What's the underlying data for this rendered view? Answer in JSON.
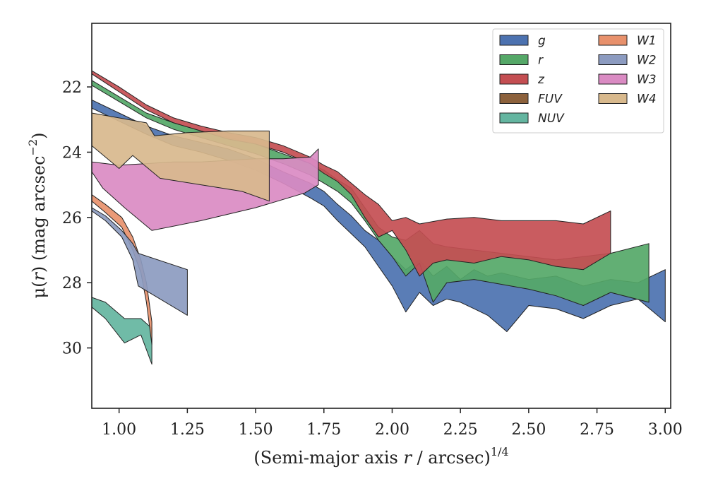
{
  "chart_data": {
    "type": "area",
    "title": "",
    "xlabel": {
      "prefix": "(Semi-major axis ",
      "var": "r",
      "mid": " / arcsec)",
      "sup": "1/4"
    },
    "ylabel": {
      "prefix": "μ(",
      "var": "r",
      "mid": ") (mag arcsec",
      "sup": "−2",
      "suffix": ")"
    },
    "xlim": [
      0.9,
      3.02
    ],
    "ylim": [
      31.85,
      20.05
    ],
    "y_inverted": true,
    "xticks": [
      1.0,
      1.25,
      1.5,
      1.75,
      2.0,
      2.25,
      2.5,
      2.75,
      3.0
    ],
    "xtick_labels": [
      "1.00",
      "1.25",
      "1.50",
      "1.75",
      "2.00",
      "2.25",
      "2.50",
      "2.75",
      "3.00"
    ],
    "yticks": [
      22,
      24,
      26,
      28,
      30
    ],
    "ytick_labels": [
      "22",
      "24",
      "26",
      "28",
      "30"
    ],
    "grid": false,
    "legend": {
      "placement": "top-right",
      "columns": 2
    },
    "series": [
      {
        "name": "g",
        "color": "#4c72b0",
        "upper": [
          [
            0.9,
            22.4
          ],
          [
            1.0,
            22.8
          ],
          [
            1.1,
            23.2
          ],
          [
            1.2,
            23.5
          ],
          [
            1.3,
            23.7
          ],
          [
            1.4,
            23.9
          ],
          [
            1.5,
            24.2
          ],
          [
            1.6,
            24.6
          ],
          [
            1.7,
            24.95
          ],
          [
            1.75,
            25.2
          ],
          [
            1.8,
            25.6
          ],
          [
            1.85,
            25.95
          ],
          [
            1.9,
            26.4
          ],
          [
            1.95,
            26.7
          ],
          [
            2.0,
            27.2
          ],
          [
            2.05,
            27.6
          ],
          [
            2.1,
            27.3
          ],
          [
            2.15,
            27.8
          ],
          [
            2.2,
            27.5
          ],
          [
            2.25,
            27.9
          ],
          [
            2.3,
            27.6
          ],
          [
            2.35,
            27.8
          ],
          [
            2.4,
            27.7
          ],
          [
            2.5,
            27.9
          ],
          [
            2.6,
            27.8
          ],
          [
            2.7,
            28.1
          ],
          [
            2.8,
            27.9
          ],
          [
            2.9,
            28.0
          ],
          [
            3.0,
            27.6
          ]
        ],
        "lower": [
          [
            0.9,
            22.65
          ],
          [
            1.0,
            23.05
          ],
          [
            1.1,
            23.45
          ],
          [
            1.2,
            23.8
          ],
          [
            1.3,
            24.0
          ],
          [
            1.4,
            24.25
          ],
          [
            1.5,
            24.55
          ],
          [
            1.6,
            24.95
          ],
          [
            1.7,
            25.4
          ],
          [
            1.75,
            25.65
          ],
          [
            1.8,
            26.1
          ],
          [
            1.85,
            26.5
          ],
          [
            1.9,
            26.9
          ],
          [
            1.95,
            27.5
          ],
          [
            2.0,
            28.1
          ],
          [
            2.05,
            28.9
          ],
          [
            2.1,
            28.3
          ],
          [
            2.15,
            28.7
          ],
          [
            2.2,
            28.5
          ],
          [
            2.25,
            28.6
          ],
          [
            2.3,
            28.8
          ],
          [
            2.35,
            29.0
          ],
          [
            2.42,
            29.5
          ],
          [
            2.5,
            28.7
          ],
          [
            2.6,
            28.8
          ],
          [
            2.7,
            29.1
          ],
          [
            2.8,
            28.7
          ],
          [
            2.9,
            28.5
          ],
          [
            3.0,
            29.2
          ]
        ]
      },
      {
        "name": "r",
        "color": "#55a868",
        "upper": [
          [
            0.9,
            21.8
          ],
          [
            1.0,
            22.3
          ],
          [
            1.1,
            22.8
          ],
          [
            1.2,
            23.1
          ],
          [
            1.3,
            23.35
          ],
          [
            1.4,
            23.55
          ],
          [
            1.5,
            23.75
          ],
          [
            1.6,
            24.05
          ],
          [
            1.7,
            24.35
          ],
          [
            1.75,
            24.55
          ],
          [
            1.8,
            24.85
          ],
          [
            1.85,
            25.1
          ],
          [
            1.9,
            25.7
          ],
          [
            1.95,
            26.3
          ],
          [
            2.0,
            26.6
          ],
          [
            2.05,
            26.7
          ],
          [
            2.1,
            26.4
          ],
          [
            2.15,
            26.8
          ],
          [
            2.2,
            26.9
          ],
          [
            2.3,
            27.0
          ],
          [
            2.5,
            27.2
          ],
          [
            2.6,
            27.3
          ],
          [
            2.7,
            27.2
          ],
          [
            2.8,
            27.1
          ],
          [
            2.94,
            26.8
          ]
        ],
        "lower": [
          [
            0.9,
            21.95
          ],
          [
            1.0,
            22.45
          ],
          [
            1.1,
            22.95
          ],
          [
            1.2,
            23.3
          ],
          [
            1.3,
            23.55
          ],
          [
            1.4,
            23.8
          ],
          [
            1.5,
            24.05
          ],
          [
            1.6,
            24.35
          ],
          [
            1.7,
            24.7
          ],
          [
            1.75,
            24.95
          ],
          [
            1.8,
            25.2
          ],
          [
            1.85,
            25.55
          ],
          [
            1.9,
            26.1
          ],
          [
            1.95,
            26.7
          ],
          [
            2.0,
            27.2
          ],
          [
            2.05,
            27.8
          ],
          [
            2.1,
            27.4
          ],
          [
            2.15,
            28.6
          ],
          [
            2.2,
            28.0
          ],
          [
            2.3,
            27.9
          ],
          [
            2.5,
            28.2
          ],
          [
            2.6,
            28.4
          ],
          [
            2.7,
            28.7
          ],
          [
            2.8,
            28.3
          ],
          [
            2.94,
            28.6
          ]
        ]
      },
      {
        "name": "z",
        "color": "#c44e52",
        "upper": [
          [
            0.9,
            21.5
          ],
          [
            1.0,
            22.0
          ],
          [
            1.1,
            22.55
          ],
          [
            1.2,
            22.95
          ],
          [
            1.3,
            23.2
          ],
          [
            1.4,
            23.4
          ],
          [
            1.5,
            23.55
          ],
          [
            1.6,
            23.8
          ],
          [
            1.7,
            24.15
          ],
          [
            1.75,
            24.4
          ],
          [
            1.8,
            24.6
          ],
          [
            1.85,
            24.95
          ],
          [
            1.9,
            25.3
          ],
          [
            1.95,
            25.6
          ],
          [
            2.0,
            26.1
          ],
          [
            2.05,
            26.0
          ],
          [
            2.1,
            26.2
          ],
          [
            2.2,
            26.05
          ],
          [
            2.3,
            26.0
          ],
          [
            2.4,
            26.1
          ],
          [
            2.5,
            26.1
          ],
          [
            2.6,
            26.1
          ],
          [
            2.7,
            26.2
          ],
          [
            2.8,
            25.8
          ]
        ],
        "lower": [
          [
            0.9,
            21.6
          ],
          [
            1.0,
            22.15
          ],
          [
            1.1,
            22.7
          ],
          [
            1.2,
            23.1
          ],
          [
            1.3,
            23.35
          ],
          [
            1.4,
            23.6
          ],
          [
            1.5,
            23.75
          ],
          [
            1.6,
            24.0
          ],
          [
            1.7,
            24.35
          ],
          [
            1.75,
            24.65
          ],
          [
            1.8,
            24.9
          ],
          [
            1.85,
            25.3
          ],
          [
            1.9,
            26.0
          ],
          [
            1.95,
            26.6
          ],
          [
            2.0,
            26.4
          ],
          [
            2.05,
            27.0
          ],
          [
            2.1,
            27.8
          ],
          [
            2.15,
            27.4
          ],
          [
            2.2,
            27.3
          ],
          [
            2.3,
            27.4
          ],
          [
            2.4,
            27.2
          ],
          [
            2.5,
            27.3
          ],
          [
            2.6,
            27.5
          ],
          [
            2.7,
            27.6
          ],
          [
            2.8,
            27.1
          ]
        ]
      },
      {
        "name": "FUV",
        "color": "#8c613c",
        "upper": [],
        "lower": []
      },
      {
        "name": "NUV",
        "color": "#64b5a0",
        "upper": [
          [
            0.9,
            28.45
          ],
          [
            0.95,
            28.6
          ],
          [
            1.02,
            29.1
          ],
          [
            1.08,
            29.1
          ],
          [
            1.12,
            29.4
          ]
        ],
        "lower": [
          [
            0.9,
            28.75
          ],
          [
            0.95,
            29.1
          ],
          [
            1.02,
            29.85
          ],
          [
            1.08,
            29.6
          ],
          [
            1.12,
            30.5
          ]
        ]
      },
      {
        "name": "W1",
        "color": "#e8916c",
        "upper": [
          [
            0.9,
            25.3
          ],
          [
            0.95,
            25.6
          ],
          [
            1.01,
            26.0
          ],
          [
            1.05,
            26.6
          ],
          [
            1.08,
            27.3
          ],
          [
            1.1,
            28.0
          ],
          [
            1.12,
            29.2
          ]
        ],
        "lower": [
          [
            0.9,
            25.5
          ],
          [
            0.95,
            25.85
          ],
          [
            1.01,
            26.3
          ],
          [
            1.05,
            27.0
          ],
          [
            1.08,
            27.7
          ],
          [
            1.1,
            28.6
          ],
          [
            1.12,
            29.9
          ]
        ]
      },
      {
        "name": "W2",
        "color": "#8c9bc0",
        "upper": [
          [
            0.9,
            25.7
          ],
          [
            0.95,
            25.95
          ],
          [
            1.01,
            26.4
          ],
          [
            1.05,
            26.8
          ],
          [
            1.07,
            27.1
          ],
          [
            1.25,
            27.6
          ]
        ],
        "lower": [
          [
            0.9,
            25.8
          ],
          [
            0.95,
            26.1
          ],
          [
            1.01,
            26.6
          ],
          [
            1.05,
            27.3
          ],
          [
            1.07,
            28.1
          ],
          [
            1.25,
            29.0
          ]
        ]
      },
      {
        "name": "W3",
        "color": "#da8bc3",
        "upper": [
          [
            0.9,
            24.3
          ],
          [
            1.0,
            24.4
          ],
          [
            1.1,
            24.35
          ],
          [
            1.2,
            24.3
          ],
          [
            1.3,
            24.3
          ],
          [
            1.4,
            24.25
          ],
          [
            1.5,
            24.2
          ],
          [
            1.6,
            24.2
          ],
          [
            1.7,
            24.15
          ],
          [
            1.73,
            23.9
          ]
        ],
        "lower": [
          [
            0.9,
            24.6
          ],
          [
            0.94,
            25.1
          ],
          [
            1.02,
            25.7
          ],
          [
            1.12,
            26.4
          ],
          [
            1.3,
            26.1
          ],
          [
            1.5,
            25.7
          ],
          [
            1.68,
            25.25
          ],
          [
            1.73,
            25.0
          ]
        ]
      },
      {
        "name": "W4",
        "color": "#d8b98d",
        "upper": [
          [
            0.9,
            22.8
          ],
          [
            1.1,
            23.1
          ],
          [
            1.13,
            23.5
          ],
          [
            1.25,
            23.4
          ],
          [
            1.4,
            23.35
          ],
          [
            1.55,
            23.35
          ]
        ],
        "lower": [
          [
            0.9,
            23.8
          ],
          [
            1.0,
            24.5
          ],
          [
            1.05,
            24.1
          ],
          [
            1.15,
            24.8
          ],
          [
            1.3,
            25.0
          ],
          [
            1.45,
            25.2
          ],
          [
            1.55,
            25.5
          ]
        ]
      }
    ]
  }
}
